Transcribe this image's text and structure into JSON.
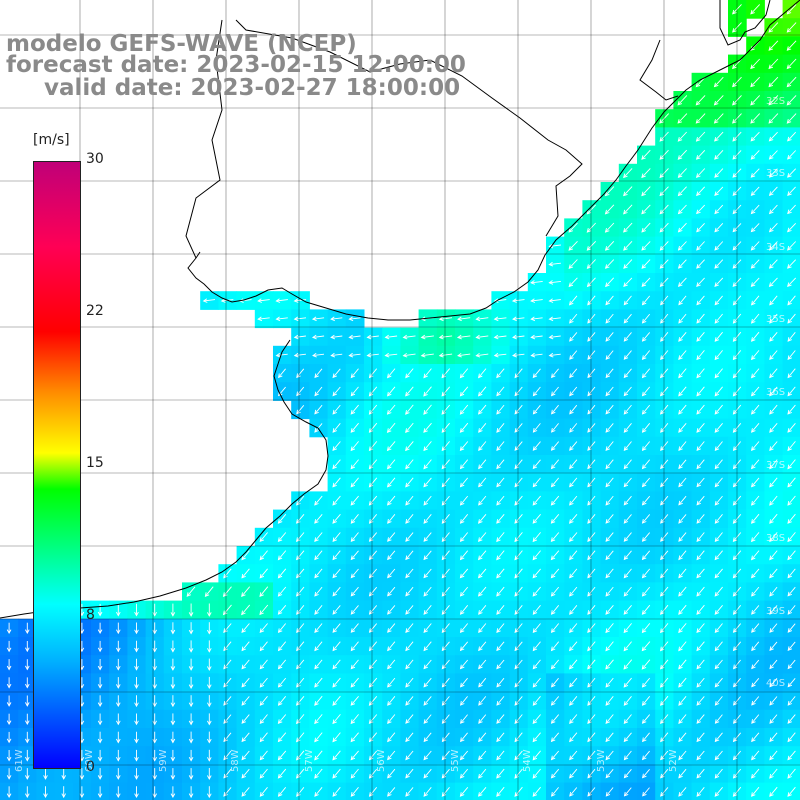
{
  "header": {
    "model": "modelo GEFS-WAVE (NCEP)",
    "forecast": "forecast date: 2023-02-15 12:00:00",
    "valid": "valid date: 2023-02-27 18:00:00"
  },
  "colorbar": {
    "unit": "[m/s]",
    "ticks": [
      {
        "label": "30",
        "value": 30
      },
      {
        "label": "22",
        "value": 22
      },
      {
        "label": "15",
        "value": 15
      },
      {
        "label": "8",
        "value": 8
      },
      {
        "label": "0",
        "value": 0
      }
    ],
    "range": [
      0,
      30
    ],
    "colors": [
      "#0000ff",
      "#00b4ff",
      "#00ffff",
      "#00ff00",
      "#ffff00",
      "#ff8c00",
      "#ff0000",
      "#c00078"
    ]
  },
  "map": {
    "lat_labels": [
      "32S",
      "33S",
      "34S",
      "35S",
      "36S",
      "37S",
      "38S",
      "39S",
      "40S"
    ],
    "lon_labels": [
      "61W",
      "60W",
      "59W",
      "58W",
      "57W",
      "56W",
      "55W",
      "54W",
      "53W",
      "52W"
    ],
    "vector_color": "#ffffff",
    "coastline_color": "#000000",
    "grid_color": "#000000",
    "land_color": "#ffffff"
  }
}
